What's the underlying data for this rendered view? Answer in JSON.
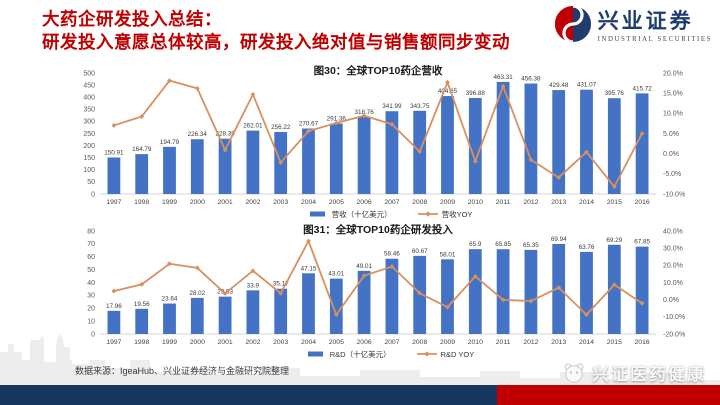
{
  "header": {
    "title_line1": "大药企研发投入总结：",
    "title_line2": "研发投入意愿总体较高，研发投入绝对值与销售额同步变动",
    "logo_name": "兴业证券",
    "logo_subtitle": "INDUSTRIAL SECURITIES"
  },
  "colors": {
    "bar": "#4472c4",
    "line": "#d8905f",
    "title_red": "#c00000",
    "footer_navy": "#17375e",
    "footer_red": "#c00000",
    "axis_text": "#595959"
  },
  "chart_data": [
    {
      "type": "bar+line",
      "title": "图30：全球TOP10药企营收",
      "categories": [
        "1997",
        "1998",
        "1999",
        "2000",
        "2001",
        "2002",
        "2003",
        "2004",
        "2005",
        "2006",
        "2007",
        "2008",
        "2009",
        "2010",
        "2011",
        "2012",
        "2013",
        "2014",
        "2015",
        "2016"
      ],
      "series": [
        {
          "name": "营收（十亿美元）",
          "kind": "bar",
          "axis": "left",
          "show_labels": true,
          "values": [
            150.91,
            164.79,
            194.79,
            226.34,
            228.39,
            262.01,
            256.22,
            270.67,
            291.36,
            318.76,
            341.99,
            343.75,
            404.65,
            396.88,
            463.31,
            456.38,
            429.48,
            431.07,
            395.76,
            415.72
          ]
        },
        {
          "name": "营收YOY",
          "kind": "line",
          "axis": "right",
          "show_labels": false,
          "values": [
            7.0,
            9.2,
            18.1,
            16.2,
            0.9,
            14.7,
            -2.2,
            5.6,
            7.6,
            9.4,
            7.3,
            0.5,
            17.7,
            -1.9,
            16.7,
            -1.5,
            -5.9,
            0.4,
            -8.2,
            5.0
          ]
        }
      ],
      "left_axis": {
        "min": 0,
        "max": 500,
        "step": 50
      },
      "right_axis": {
        "min": -10,
        "max": 20,
        "step": 5,
        "unit": "%"
      },
      "legend_position": "bottom",
      "grid": false
    },
    {
      "type": "bar+line",
      "title": "图31：全球TOP10药企研发投入",
      "categories": [
        "1997",
        "1998",
        "1999",
        "2000",
        "2001",
        "2002",
        "2003",
        "2004",
        "2005",
        "2006",
        "2007",
        "2008",
        "2009",
        "2010",
        "2011",
        "2012",
        "2013",
        "2014",
        "2015",
        "2016"
      ],
      "series": [
        {
          "name": "R&D（十亿美元）",
          "kind": "bar",
          "axis": "left",
          "show_labels": true,
          "values": [
            17.96,
            19.56,
            23.64,
            28.02,
            29.03,
            33.9,
            35.17,
            47.15,
            43.01,
            49.01,
            58.46,
            60.67,
            58.01,
            65.9,
            65.85,
            65.35,
            69.94,
            63.76,
            69.29,
            67.85
          ]
        },
        {
          "name": "R&D YOY",
          "kind": "line",
          "axis": "right",
          "show_labels": false,
          "values": [
            5.0,
            8.9,
            20.9,
            18.5,
            3.6,
            16.8,
            3.7,
            34.1,
            -8.8,
            13.9,
            19.3,
            3.8,
            -4.4,
            13.6,
            -0.1,
            -0.8,
            7.0,
            -8.8,
            8.7,
            -2.1
          ]
        }
      ],
      "left_axis": {
        "min": 0,
        "max": 80,
        "step": 10
      },
      "right_axis": {
        "min": -20,
        "max": 40,
        "step": 10,
        "unit": "%"
      },
      "legend_position": "bottom",
      "grid": false
    }
  ],
  "footer": {
    "source": "数据来源：IgeaHub、兴业证券经济与金融研究院整理",
    "watermark": "兴证医药健康"
  }
}
